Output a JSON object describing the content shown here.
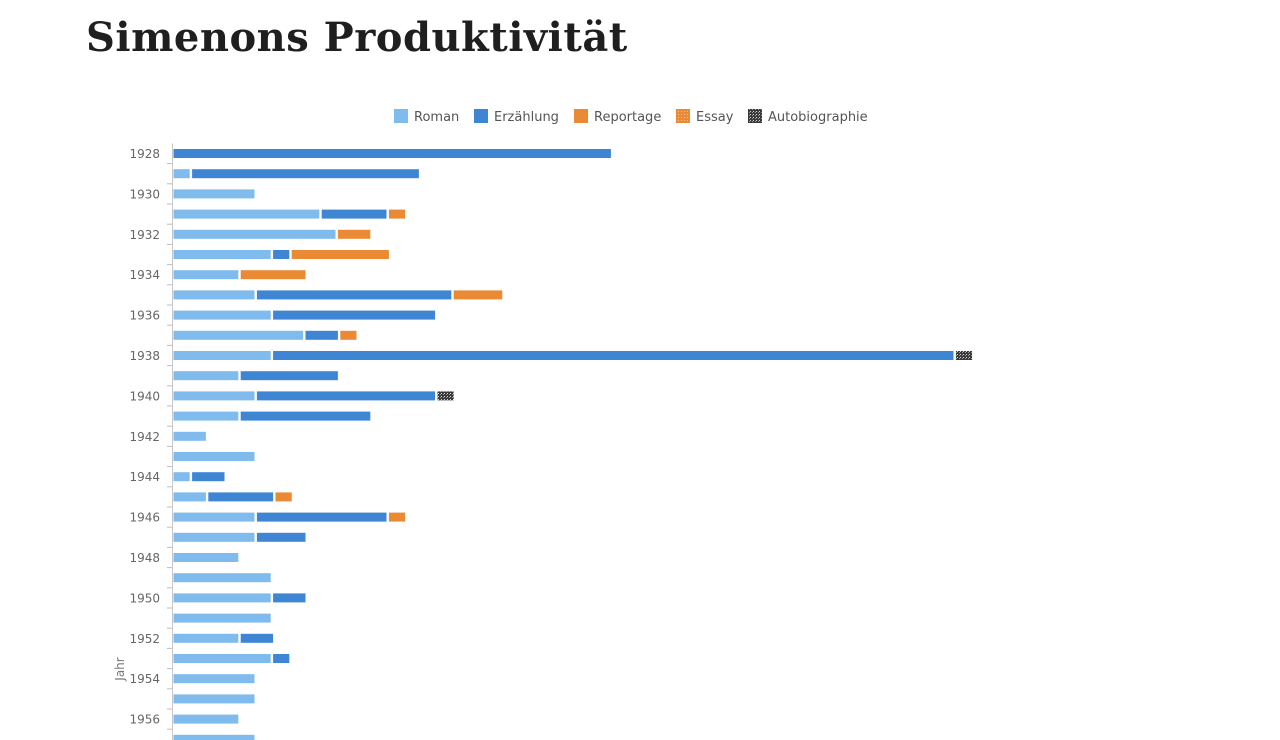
{
  "page": {
    "title": "Simenons Produktivität"
  },
  "chart_data": {
    "type": "bar",
    "orientation": "horizontal",
    "stacked": true,
    "ylabel": "Jahr",
    "xlabel": "",
    "legend_position": "top-center",
    "grid": false,
    "tick_labels": [
      "1928",
      "1930",
      "1932",
      "1934",
      "1936",
      "1938",
      "1940",
      "1942",
      "1944",
      "1946",
      "1948",
      "1950",
      "1952",
      "1954",
      "1956"
    ],
    "categories": [
      "1928",
      "1929",
      "1930",
      "1931",
      "1932",
      "1933",
      "1934",
      "1935",
      "1936",
      "1937",
      "1938",
      "1939",
      "1940",
      "1941",
      "1942",
      "1943",
      "1944",
      "1945",
      "1946",
      "1947",
      "1948",
      "1949",
      "1950",
      "1951",
      "1952",
      "1953",
      "1954",
      "1955",
      "1956",
      "1957"
    ],
    "series": [
      {
        "name": "Roman",
        "color": "#7fbbec",
        "pattern": "solid",
        "values": [
          0,
          1,
          5,
          9,
          10,
          6,
          4,
          5,
          6,
          8,
          6,
          4,
          5,
          4,
          2,
          5,
          1,
          2,
          5,
          5,
          4,
          6,
          6,
          6,
          4,
          6,
          5,
          5,
          4,
          5
        ]
      },
      {
        "name": "Erzählung",
        "color": "#3e86d3",
        "pattern": "solid",
        "values": [
          27,
          14,
          0,
          4,
          0,
          1,
          0,
          12,
          10,
          2,
          42,
          6,
          11,
          8,
          0,
          0,
          2,
          4,
          8,
          3,
          0,
          0,
          2,
          0,
          2,
          1,
          0,
          0,
          0,
          0
        ]
      },
      {
        "name": "Reportage",
        "color": "#ea8a35",
        "pattern": "solid",
        "values": [
          0,
          0,
          0,
          1,
          2,
          6,
          4,
          3,
          0,
          1,
          0,
          0,
          0,
          0,
          0,
          0,
          0,
          1,
          1,
          0,
          0,
          0,
          0,
          0,
          0,
          0,
          0,
          0,
          0,
          0
        ]
      },
      {
        "name": "Essay",
        "color": "#ea8a35",
        "pattern": "dotted",
        "values": [
          0,
          0,
          0,
          0,
          0,
          0,
          0,
          0,
          0,
          0,
          0,
          0,
          0,
          0,
          0,
          0,
          0,
          0,
          0,
          0,
          0,
          0,
          0,
          0,
          0,
          0,
          0,
          0,
          0,
          0
        ]
      },
      {
        "name": "Autobiographie",
        "color": "#4a4a4a",
        "pattern": "dotted",
        "values": [
          0,
          0,
          0,
          0,
          0,
          0,
          0,
          0,
          0,
          0,
          1,
          0,
          1,
          0,
          0,
          0,
          0,
          0,
          0,
          0,
          0,
          0,
          0,
          0,
          0,
          0,
          0,
          0,
          0,
          0
        ]
      }
    ]
  }
}
